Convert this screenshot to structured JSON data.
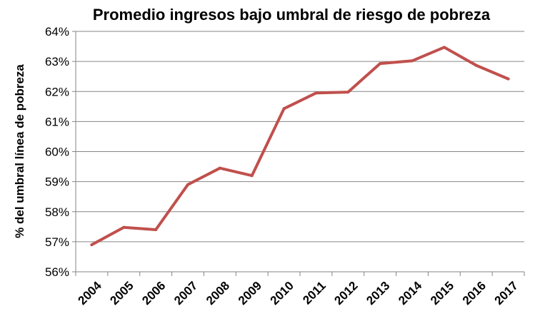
{
  "chart_data": {
    "type": "line",
    "title": "Promedio ingresos bajo umbral de riesgo de pobreza",
    "xlabel": "",
    "ylabel": "% del umbral línea de pobreza",
    "categories": [
      "2004",
      "2005",
      "2006",
      "2007",
      "2008",
      "2009",
      "2010",
      "2011",
      "2012",
      "2013",
      "2014",
      "2015",
      "2016",
      "2017"
    ],
    "series": [
      {
        "color": "#c0504d",
        "values": [
          56.9,
          57.48,
          57.4,
          58.9,
          59.45,
          59.2,
          61.43,
          61.95,
          61.98,
          62.93,
          63.02,
          63.47,
          62.87,
          62.42
        ]
      }
    ],
    "ylim": [
      56,
      64
    ],
    "yticks": [
      56,
      57,
      58,
      59,
      60,
      61,
      62,
      63,
      64
    ],
    "ytick_labels": [
      "56%",
      "57%",
      "58%",
      "59%",
      "60%",
      "61%",
      "62%",
      "63%",
      "64%"
    ],
    "grid": true,
    "legend": "none"
  }
}
